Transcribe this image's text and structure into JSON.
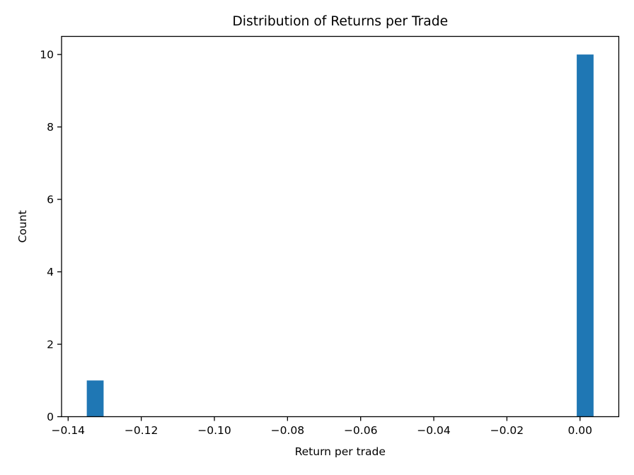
{
  "figure": {
    "background_color": "#ffffff"
  },
  "chart_data": {
    "type": "bar",
    "subtype": "histogram",
    "title": "Distribution of Returns per Trade",
    "xlabel": "Return per trade",
    "ylabel": "Count",
    "xlim": [
      -0.1418,
      0.0106
    ],
    "ylim": [
      0,
      10.5
    ],
    "grid": false,
    "bar_color": "#1f77b4",
    "axis_color": "#000000",
    "text_color": "#000000",
    "xticks": [
      {
        "value": -0.14,
        "label": "−0.14"
      },
      {
        "value": -0.12,
        "label": "−0.12"
      },
      {
        "value": -0.1,
        "label": "−0.10"
      },
      {
        "value": -0.08,
        "label": "−0.08"
      },
      {
        "value": -0.06,
        "label": "−0.06"
      },
      {
        "value": -0.04,
        "label": "−0.04"
      },
      {
        "value": -0.02,
        "label": "−0.02"
      },
      {
        "value": 0.0,
        "label": "0.00"
      }
    ],
    "yticks": [
      {
        "value": 0,
        "label": "0"
      },
      {
        "value": 2,
        "label": "2"
      },
      {
        "value": 4,
        "label": "4"
      },
      {
        "value": 6,
        "label": "6"
      },
      {
        "value": 8,
        "label": "8"
      },
      {
        "value": 10,
        "label": "10"
      }
    ],
    "bars": [
      {
        "x_start": -0.1349,
        "x_end": -0.1303,
        "count": 1
      },
      {
        "x_start": -0.0009,
        "x_end": 0.0037,
        "count": 10
      }
    ]
  }
}
